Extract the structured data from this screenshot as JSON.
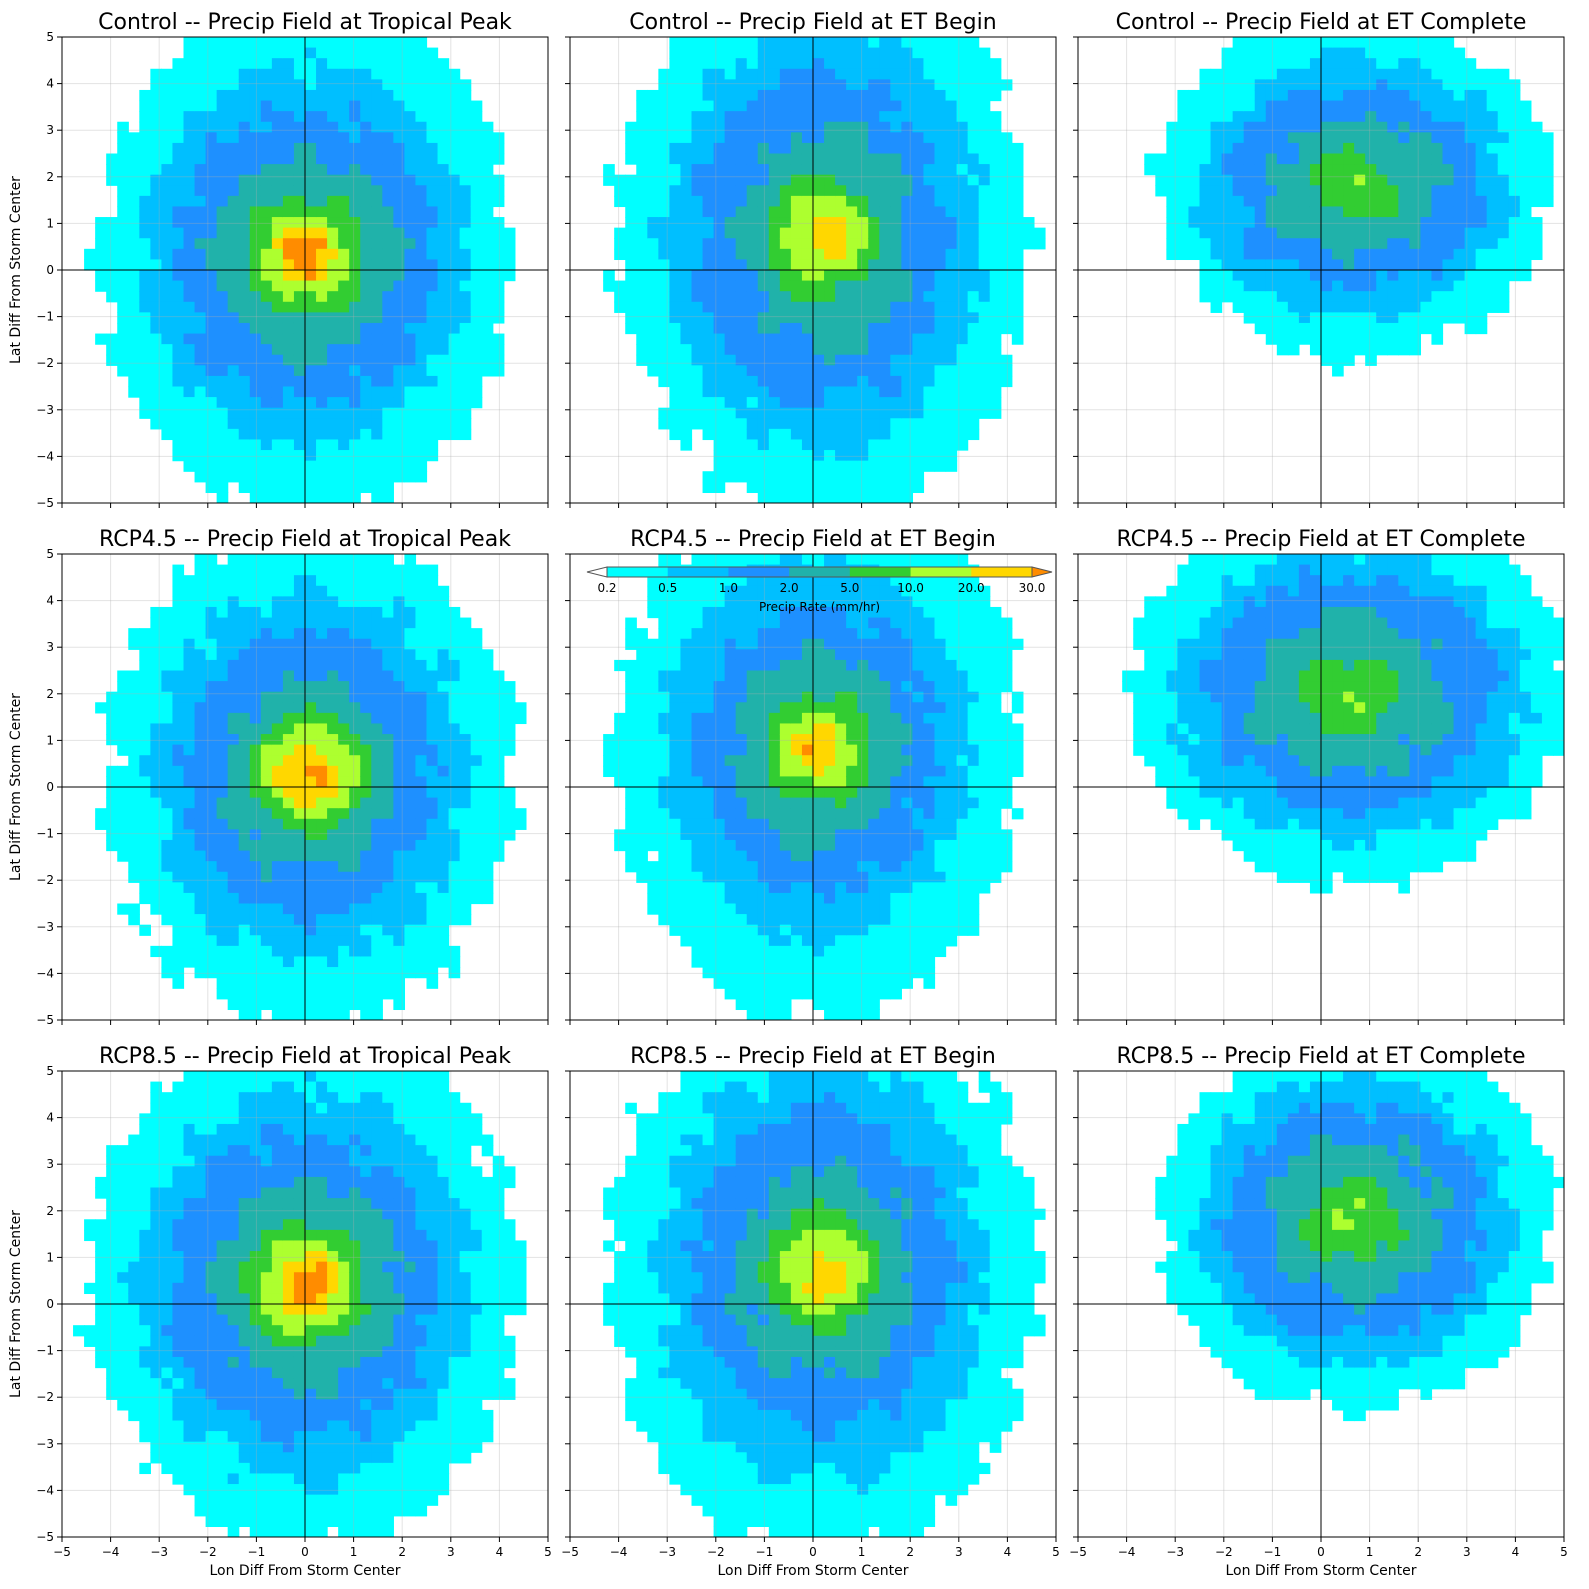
{
  "chart_data": {
    "type": "filled-contour",
    "colors": {
      "c1": "#00ffff",
      "c2": "#00bfff",
      "c3": "#1e90ff",
      "c4": "#20b2aa",
      "c5": "#32cd32",
      "c6": "#adff2f",
      "c7": "#ffd700",
      "c8": "#ff8c00",
      "extend_low": "#ffffff"
    },
    "grid": true,
    "xlim": [
      -5,
      5
    ],
    "ylim": [
      -5,
      5
    ],
    "xticks": [
      "−5",
      "−4",
      "−3",
      "−2",
      "−1",
      "0",
      "1",
      "2",
      "3",
      "4",
      "5"
    ],
    "yticks": [
      "5",
      "4",
      "3",
      "2",
      "1",
      "0",
      "−1",
      "−2",
      "−3",
      "−4",
      "−5"
    ],
    "xlabel": "Lon Diff From Storm Center",
    "ylabel": "Lat Diff From Storm Center",
    "colorbar": {
      "label": "Precip Rate (mm/hr)",
      "levels": [
        "0.2",
        "0.5",
        "1.0",
        "2.0",
        "5.0",
        "10.0",
        "20.0",
        "30.0"
      ],
      "extend": "both",
      "location": "inside-top (RCP4.5 ET Begin panel)"
    },
    "panels": [
      {
        "title": "Control -- Precip Field at Tropical Peak",
        "center": [
          0.0,
          0.3
        ],
        "spread": [
          2.6,
          2.9
        ],
        "peak": 30,
        "extent": [
          3.5,
          4.8
        ]
      },
      {
        "title": "Control -- Precip Field at ET Begin",
        "center": [
          0.2,
          0.7
        ],
        "spread": [
          2.4,
          3.3
        ],
        "peak": 22,
        "extent": [
          3.6,
          5.2
        ]
      },
      {
        "title": "Control -- Precip Field at ET Complete",
        "center": [
          0.7,
          1.8
        ],
        "spread": [
          2.6,
          2.0
        ],
        "peak": 6,
        "extent": [
          3.2,
          3.2
        ]
      },
      {
        "title": "RCP4.5 -- Precip Field at Tropical Peak",
        "center": [
          0.1,
          0.3
        ],
        "spread": [
          2.4,
          2.8
        ],
        "peak": 32,
        "extent": [
          3.6,
          4.8
        ]
      },
      {
        "title": "RCP4.5 -- Precip Field at ET Begin",
        "center": [
          0.1,
          0.8
        ],
        "spread": [
          2.3,
          2.8
        ],
        "peak": 22,
        "extent": [
          3.6,
          5.0
        ]
      },
      {
        "title": "RCP4.5 -- Precip Field at ET Complete",
        "center": [
          0.6,
          2.0
        ],
        "spread": [
          2.9,
          2.4
        ],
        "peak": 6,
        "extent": [
          3.6,
          3.4
        ]
      },
      {
        "title": "RCP8.5 -- Precip Field at Tropical Peak",
        "center": [
          0.0,
          0.4
        ],
        "spread": [
          2.6,
          3.0
        ],
        "peak": 32,
        "extent": [
          3.7,
          4.9
        ]
      },
      {
        "title": "RCP8.5 -- Precip Field at ET Begin",
        "center": [
          0.2,
          0.7
        ],
        "spread": [
          2.5,
          3.2
        ],
        "peak": 22,
        "extent": [
          3.8,
          5.2
        ]
      },
      {
        "title": "RCP8.5 -- Precip Field at ET Complete",
        "center": [
          0.7,
          1.8
        ],
        "spread": [
          2.6,
          2.4
        ],
        "peak": 7,
        "extent": [
          3.2,
          3.4
        ]
      }
    ]
  }
}
